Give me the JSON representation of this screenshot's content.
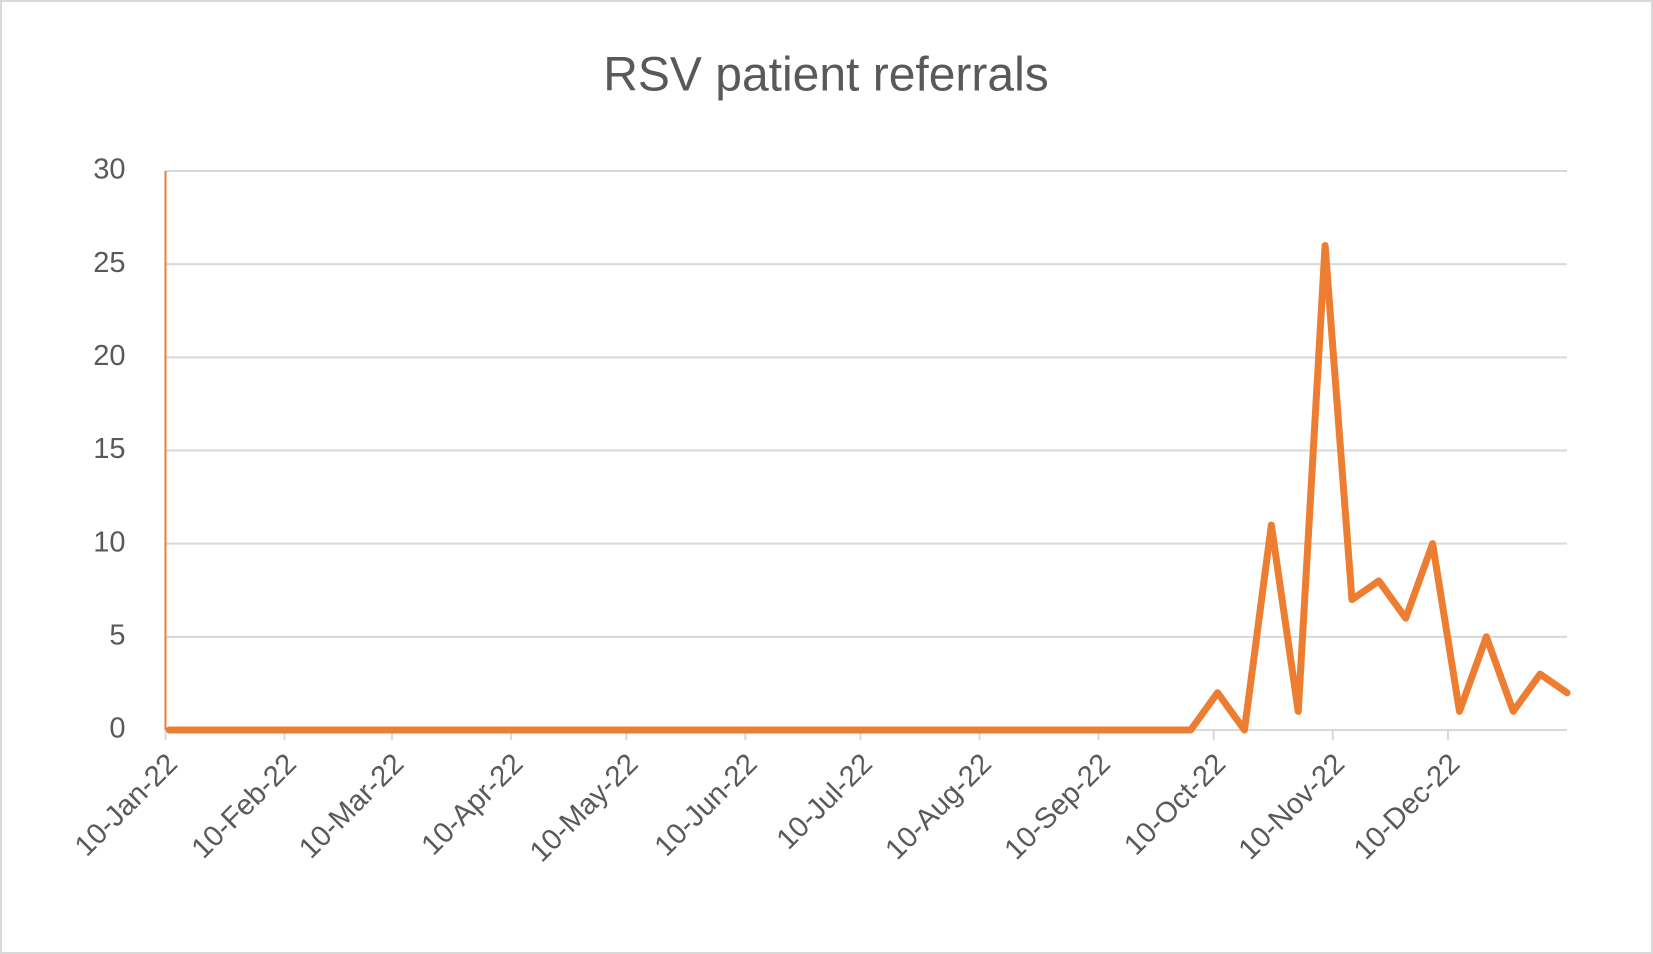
{
  "chart_data": {
    "type": "line",
    "title": "RSV patient referrals",
    "x": [
      "2022-01-11",
      "2022-01-18",
      "2022-01-25",
      "2022-02-01",
      "2022-02-08",
      "2022-02-15",
      "2022-02-22",
      "2022-03-01",
      "2022-03-08",
      "2022-03-15",
      "2022-03-22",
      "2022-03-29",
      "2022-04-05",
      "2022-04-12",
      "2022-04-19",
      "2022-04-26",
      "2022-05-03",
      "2022-05-10",
      "2022-05-17",
      "2022-05-24",
      "2022-05-31",
      "2022-06-07",
      "2022-06-14",
      "2022-06-21",
      "2022-06-28",
      "2022-07-05",
      "2022-07-12",
      "2022-07-19",
      "2022-07-26",
      "2022-08-02",
      "2022-08-09",
      "2022-08-16",
      "2022-08-23",
      "2022-08-30",
      "2022-09-06",
      "2022-09-13",
      "2022-09-20",
      "2022-09-27",
      "2022-10-04",
      "2022-10-11",
      "2022-10-18",
      "2022-10-25",
      "2022-11-01",
      "2022-11-08",
      "2022-11-15",
      "2022-11-22",
      "2022-11-29",
      "2022-12-06",
      "2022-12-13",
      "2022-12-20",
      "2022-12-27",
      "2023-01-03",
      "2023-01-10"
    ],
    "values": [
      0,
      0,
      0,
      0,
      0,
      0,
      0,
      0,
      0,
      0,
      0,
      0,
      0,
      0,
      0,
      0,
      0,
      0,
      0,
      0,
      0,
      0,
      0,
      0,
      0,
      0,
      0,
      0,
      0,
      0,
      0,
      0,
      0,
      0,
      0,
      0,
      0,
      0,
      0,
      2,
      0,
      11,
      1,
      26,
      7,
      8,
      6,
      10,
      1,
      5,
      1,
      3,
      2
    ],
    "color": "#ed7d31",
    "xlim": [
      "2022-01-10",
      "2023-01-10"
    ],
    "xticks": [
      {
        "value": "2022-01-10",
        "label": "10-Jan-22"
      },
      {
        "value": "2022-02-10",
        "label": "10-Feb-22"
      },
      {
        "value": "2022-03-10",
        "label": "10-Mar-22"
      },
      {
        "value": "2022-04-10",
        "label": "10-Apr-22"
      },
      {
        "value": "2022-05-10",
        "label": "10-May-22"
      },
      {
        "value": "2022-06-10",
        "label": "10-Jun-22"
      },
      {
        "value": "2022-07-10",
        "label": "10-Jul-22"
      },
      {
        "value": "2022-08-10",
        "label": "10-Aug-22"
      },
      {
        "value": "2022-09-10",
        "label": "10-Sep-22"
      },
      {
        "value": "2022-10-10",
        "label": "10-Oct-22"
      },
      {
        "value": "2022-11-10",
        "label": "10-Nov-22"
      },
      {
        "value": "2022-12-10",
        "label": "10-Dec-22"
      }
    ],
    "ylim": [
      0,
      30
    ],
    "yticks": [
      0,
      5,
      10,
      15,
      20,
      25,
      30
    ],
    "grid": true
  }
}
